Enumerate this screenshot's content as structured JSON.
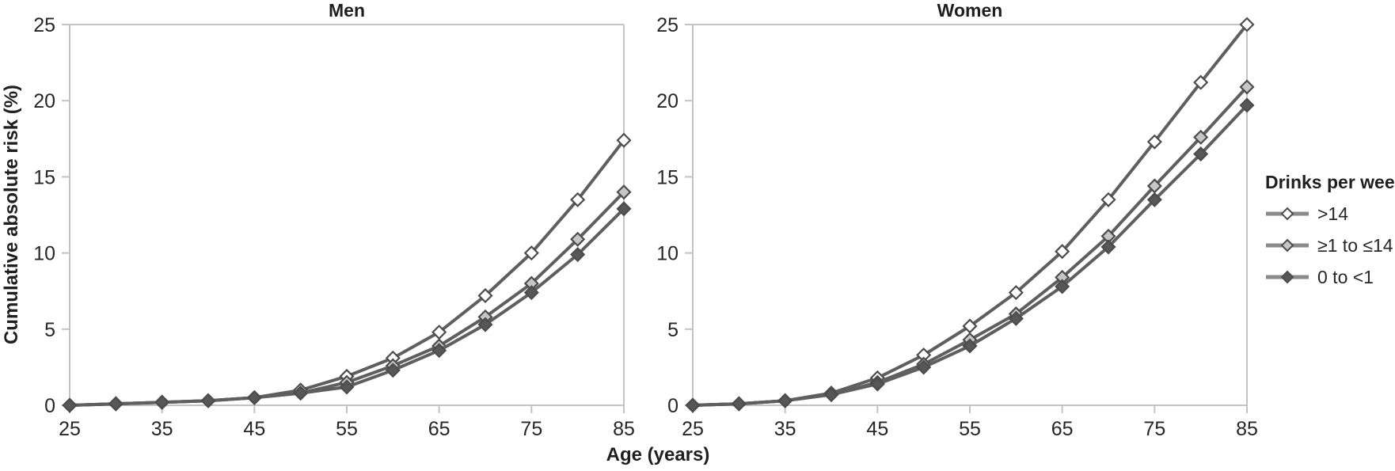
{
  "colors": {
    "line": "#5f5f5f",
    "marker_stroke": "#4c4c4c",
    "axis": "#c3c3c3",
    "text": "#262626",
    "legend_line": "#8a8a8a"
  },
  "legend": {
    "title": "Drinks per week",
    "items": [
      {
        "label": ">14",
        "marker_fill": "#ffffff"
      },
      {
        "label": "≥1 to ≤14",
        "marker_fill": "#c6c6c6"
      },
      {
        "label": "0 to <1",
        "marker_fill": "#575757"
      }
    ]
  },
  "chart_data": [
    {
      "type": "line",
      "title": "Men",
      "xlabel": "Age (years)",
      "ylabel": "Cumulative absolute risk (%)",
      "xlim": [
        25,
        85
      ],
      "ylim": [
        0,
        25
      ],
      "xticks": [
        25,
        35,
        45,
        55,
        65,
        75,
        85
      ],
      "yticks": [
        0,
        5,
        10,
        15,
        20,
        25
      ],
      "grid": false,
      "legend_position": "right",
      "x": [
        25,
        30,
        35,
        40,
        45,
        50,
        55,
        60,
        65,
        70,
        75,
        80,
        85
      ],
      "series": [
        {
          "name": ">14",
          "marker": "diamond-open",
          "marker_fill": "#ffffff",
          "values": [
            0.0,
            0.1,
            0.2,
            0.3,
            0.5,
            1.0,
            1.9,
            3.1,
            4.8,
            7.2,
            10.0,
            13.5,
            17.4
          ]
        },
        {
          "name": "≥1 to ≤14",
          "marker": "diamond-lightgray",
          "marker_fill": "#c6c6c6",
          "values": [
            0.0,
            0.1,
            0.2,
            0.3,
            0.5,
            0.8,
            1.5,
            2.6,
            3.9,
            5.8,
            8.0,
            10.9,
            14.0
          ]
        },
        {
          "name": "0 to <1",
          "marker": "diamond-darkgray",
          "marker_fill": "#575757",
          "values": [
            0.0,
            0.1,
            0.2,
            0.3,
            0.5,
            0.8,
            1.2,
            2.3,
            3.6,
            5.3,
            7.4,
            9.9,
            12.9
          ]
        }
      ]
    },
    {
      "type": "line",
      "title": "Women",
      "xlabel": "Age (years)",
      "ylabel": "",
      "xlim": [
        25,
        85
      ],
      "ylim": [
        0,
        25
      ],
      "xticks": [
        25,
        35,
        45,
        55,
        65,
        75,
        85
      ],
      "yticks": [
        0,
        5,
        10,
        15,
        20,
        25
      ],
      "grid": false,
      "legend_position": "right",
      "x": [
        25,
        30,
        35,
        40,
        45,
        50,
        55,
        60,
        65,
        70,
        75,
        80,
        85
      ],
      "series": [
        {
          "name": ">14",
          "marker": "diamond-open",
          "marker_fill": "#ffffff",
          "values": [
            0.0,
            0.1,
            0.3,
            0.8,
            1.8,
            3.3,
            5.2,
            7.4,
            10.1,
            13.5,
            17.3,
            21.2,
            25.0
          ]
        },
        {
          "name": "≥1 to ≤14",
          "marker": "diamond-lightgray",
          "marker_fill": "#c6c6c6",
          "values": [
            0.0,
            0.1,
            0.3,
            0.7,
            1.5,
            2.7,
            4.3,
            6.0,
            8.4,
            11.1,
            14.4,
            17.6,
            20.9
          ]
        },
        {
          "name": "0 to <1",
          "marker": "diamond-darkgray",
          "marker_fill": "#575757",
          "values": [
            0.0,
            0.1,
            0.3,
            0.7,
            1.4,
            2.5,
            3.9,
            5.7,
            7.8,
            10.4,
            13.5,
            16.5,
            19.7
          ]
        }
      ]
    }
  ]
}
